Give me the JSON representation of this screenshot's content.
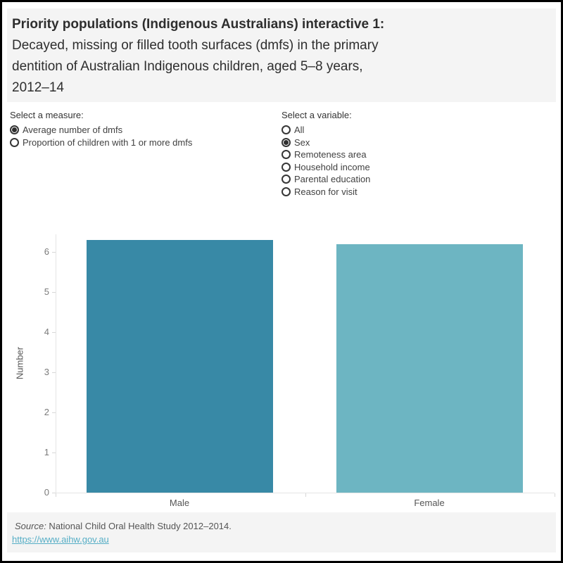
{
  "title": {
    "lines": [
      {
        "text": "Priority populations (Indigenous Australians) interactive 1:",
        "bold": true
      },
      {
        "text": "Decayed, missing or filled tooth surfaces (dmfs) in the primary",
        "bold": false
      },
      {
        "text": "dentition of Australian Indigenous children, aged 5–8 years,",
        "bold": false
      },
      {
        "text": "2012–14",
        "bold": false
      }
    ]
  },
  "controls": {
    "measure": {
      "label": "Select a measure:",
      "options": [
        {
          "label": "Average number of dmfs",
          "selected": true
        },
        {
          "label": "Proportion of children with 1 or more dmfs",
          "selected": false
        }
      ]
    },
    "variable": {
      "label": "Select a variable:",
      "options": [
        {
          "label": "All",
          "selected": false
        },
        {
          "label": "Sex",
          "selected": true
        },
        {
          "label": "Remoteness area",
          "selected": false
        },
        {
          "label": "Household income",
          "selected": false
        },
        {
          "label": "Parental education",
          "selected": false
        },
        {
          "label": "Reason for visit",
          "selected": false
        }
      ]
    }
  },
  "chart_data": {
    "type": "bar",
    "title": "Decayed, missing or filled tooth surfaces (dmfs) in the primary dentition of Australian Indigenous children, aged 5–8 years, 2012–14",
    "categories": [
      "Male",
      "Female"
    ],
    "values": [
      6.3,
      6.2
    ],
    "bar_colors": [
      "#3889a6",
      "#6db5c2"
    ],
    "xlabel": "",
    "ylabel": "Number",
    "ylim": [
      0,
      6.5
    ],
    "yticks": [
      0,
      1,
      2,
      3,
      4,
      5,
      6
    ],
    "grid": false,
    "legend": "none"
  },
  "footer": {
    "source_prefix": "Source:",
    "source_text": " National Child Oral Health Study 2012–2014.",
    "link": "https://www.aihw.gov.au"
  },
  "colors": {
    "male_bar": "#3889a6",
    "female_bar": "#6db5c2",
    "band_background": "#f4f4f4",
    "link": "#56aec6",
    "axis_line": "#e5e5e5"
  }
}
